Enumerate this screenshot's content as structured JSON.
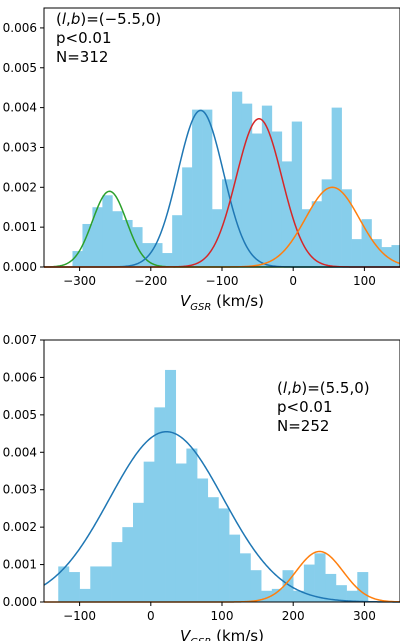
{
  "chart_data": [
    {
      "type": "bar",
      "subtype": "histogram-with-gaussian-fits",
      "annotation": [
        "(l,b)=(−5.5,0)",
        "p<0.01",
        "N=312"
      ],
      "annotation_position": "top-left",
      "xlabel": "V_GSR (km/s)",
      "ylabel": "",
      "xlim": [
        -350,
        150
      ],
      "ylim": [
        0,
        0.0065
      ],
      "xticks": [
        -300,
        -200,
        -100,
        0,
        100
      ],
      "xtick_labels": [
        "−300",
        "−200",
        "−100",
        "0",
        "100"
      ],
      "yticks": [
        0.0,
        0.001,
        0.002,
        0.003,
        0.004,
        0.005,
        0.006
      ],
      "ytick_labels": [
        "0.000",
        "0.001",
        "0.002",
        "0.003",
        "0.004",
        "0.005",
        "0.006"
      ],
      "bar_color": "#87ceeb",
      "bin_edges": [
        -310,
        -296,
        -282,
        -268,
        -254,
        -240,
        -226,
        -212,
        -198,
        -184,
        -170,
        -156,
        -142,
        -128,
        -114,
        -100,
        -86,
        -72,
        -58,
        -44,
        -30,
        -16,
        -2,
        12,
        26,
        40,
        54,
        68,
        82,
        96,
        110,
        124,
        138,
        152
      ],
      "values": [
        0.0004,
        0.00108,
        0.0015,
        0.0018,
        0.0014,
        0.00118,
        0.001,
        0.0006,
        0.0006,
        0.00035,
        0.0013,
        0.0025,
        0.00395,
        0.00395,
        0.00145,
        0.0022,
        0.0044,
        0.0041,
        0.00335,
        0.00405,
        0.0034,
        0.00265,
        0.00365,
        0.00145,
        0.00165,
        0.0022,
        0.004,
        0.00195,
        0.0007,
        0.0012,
        0.0007,
        0.0005,
        0.00055
      ],
      "series": [
        {
          "color": "#2ca02c",
          "mu": -258,
          "sigma": 24,
          "amp": 0.0019
        },
        {
          "color": "#1f77b4",
          "mu": -130,
          "sigma": 32,
          "amp": 0.00393
        },
        {
          "color": "#d62728",
          "mu": -48,
          "sigma": 32,
          "amp": 0.00372
        },
        {
          "color": "#ff7f0e",
          "mu": 55,
          "sigma": 38,
          "amp": 0.002
        }
      ]
    },
    {
      "type": "bar",
      "subtype": "histogram-with-gaussian-fits",
      "annotation": [
        "(l,b)=(5.5,0)",
        "p<0.01",
        "N=252"
      ],
      "annotation_position": "top-right",
      "xlabel": "V_GSR (km/s)",
      "ylabel": "",
      "xlim": [
        -150,
        350
      ],
      "ylim": [
        0,
        0.007
      ],
      "xticks": [
        -100,
        0,
        100,
        200,
        300
      ],
      "xtick_labels": [
        "−100",
        "0",
        "100",
        "200",
        "300"
      ],
      "yticks": [
        0.0,
        0.001,
        0.002,
        0.003,
        0.004,
        0.005,
        0.006,
        0.007
      ],
      "ytick_labels": [
        "0.000",
        "0.001",
        "0.002",
        "0.003",
        "0.004",
        "0.005",
        "0.006",
        "0.007"
      ],
      "bar_color": "#87ceeb",
      "bin_edges": [
        -130,
        -115,
        -100,
        -85,
        -70,
        -55,
        -40,
        -25,
        -10,
        5,
        20,
        35,
        50,
        65,
        80,
        95,
        110,
        125,
        140,
        155,
        170,
        185,
        200,
        215,
        230,
        245,
        260,
        275,
        290,
        305,
        320
      ],
      "values": [
        0.00095,
        0.0008,
        0.00035,
        0.00095,
        0.00095,
        0.0016,
        0.002,
        0.00265,
        0.00375,
        0.0052,
        0.0062,
        0.0037,
        0.0041,
        0.0033,
        0.0028,
        0.0025,
        0.0018,
        0.0013,
        0.00085,
        0.0003,
        0.00035,
        0.00085,
        0.0003,
        0.001,
        0.0013,
        0.00075,
        0.00045,
        0.0003,
        0.0008,
        0.0
      ],
      "series": [
        {
          "color": "#1f77b4",
          "mu": 22,
          "sigma": 80,
          "amp": 0.00455
        },
        {
          "color": "#ff7f0e",
          "mu": 237,
          "sigma": 33,
          "amp": 0.00135
        }
      ]
    }
  ]
}
